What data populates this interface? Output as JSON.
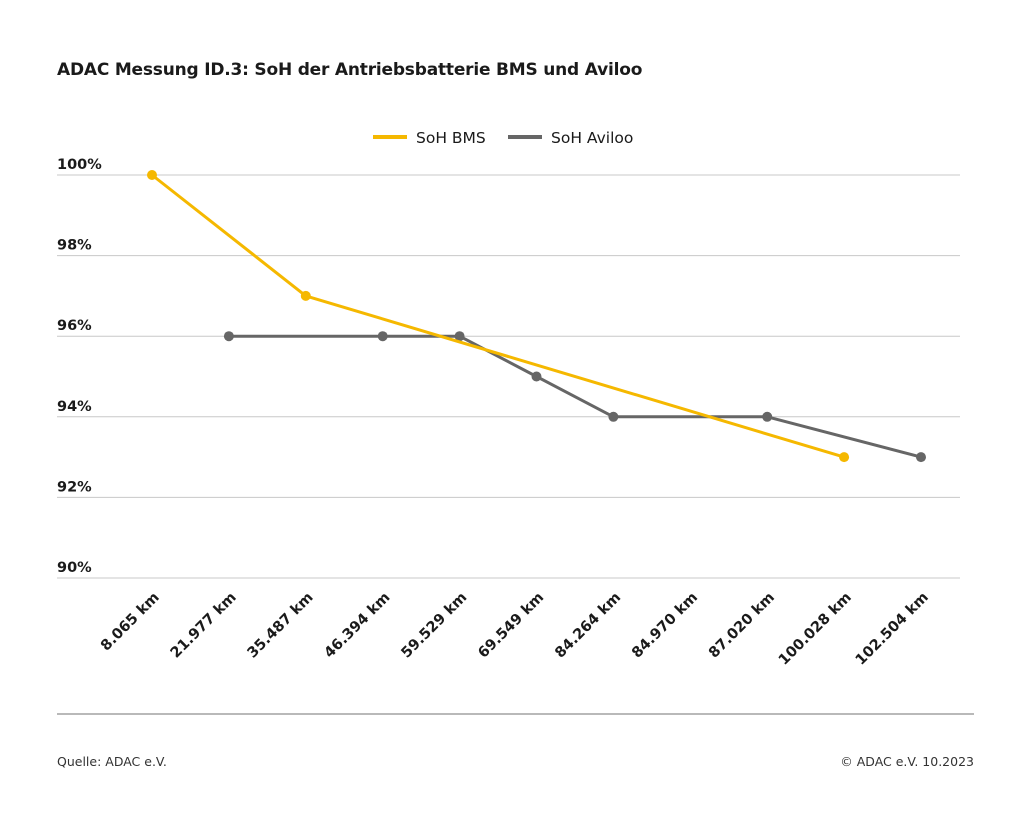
{
  "chart_data": {
    "type": "line",
    "title": "ADAC Messung ID.3: SoH der Antriebsbatterie BMS und Aviloo",
    "categories": [
      "8.065 km",
      "21.977 km",
      "35.487 km",
      "46.394 km",
      "59.529 km",
      "69.549 km",
      "84.264 km",
      "84.970 km",
      "87.020 km",
      "100.028 km",
      "102.504 km"
    ],
    "series": [
      {
        "name": "SoH BMS",
        "color": "#f5b800",
        "values": [
          100,
          null,
          97,
          null,
          null,
          null,
          null,
          null,
          null,
          93,
          null
        ]
      },
      {
        "name": "SoH Aviloo",
        "color": "#666666",
        "values": [
          null,
          96,
          null,
          96,
          96,
          95,
          94,
          null,
          94,
          null,
          93
        ]
      }
    ],
    "ylim": [
      90,
      100
    ],
    "yticks": [
      90,
      92,
      94,
      96,
      98,
      100
    ],
    "ytick_labels": [
      "90%",
      "92%",
      "94%",
      "96%",
      "98%",
      "100%"
    ],
    "xlabel": "",
    "ylabel": "",
    "grid": "horizontal",
    "legend": "top-center"
  },
  "footer": {
    "source": "Quelle: ADAC e.V.",
    "copyright": "© ADAC e.V. 10.2023"
  }
}
